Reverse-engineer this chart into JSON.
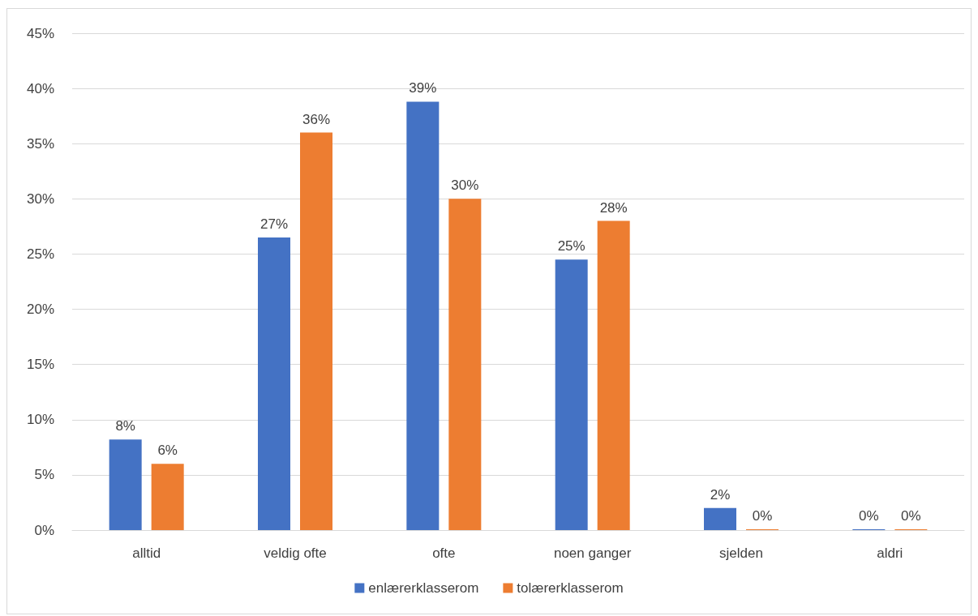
{
  "chart_data": {
    "type": "bar",
    "categories": [
      "alltid",
      "veldig ofte",
      "ofte",
      "noen ganger",
      "sjelden",
      "aldri"
    ],
    "series": [
      {
        "name": "enlærerklasserom",
        "color": "#4472c4",
        "values": [
          8.2,
          26.5,
          38.8,
          24.5,
          2.0,
          0
        ],
        "value_labels": [
          "8%",
          "27%",
          "39%",
          "25%",
          "2%",
          "0%"
        ]
      },
      {
        "name": "tolærerklasserom",
        "color": "#ed7d31",
        "values": [
          6.0,
          36.0,
          30.0,
          28.0,
          0,
          0
        ],
        "value_labels": [
          "6%",
          "36%",
          "30%",
          "28%",
          "0%",
          "0%"
        ]
      }
    ],
    "ylim": [
      0,
      45
    ],
    "yticks": [
      {
        "value": 0,
        "label": "0%"
      },
      {
        "value": 5,
        "label": "5%"
      },
      {
        "value": 10,
        "label": "10%"
      },
      {
        "value": 15,
        "label": "15%"
      },
      {
        "value": 20,
        "label": "20%"
      },
      {
        "value": 25,
        "label": "25%"
      },
      {
        "value": 30,
        "label": "30%"
      },
      {
        "value": 35,
        "label": "35%"
      },
      {
        "value": 40,
        "label": "40%"
      },
      {
        "value": 45,
        "label": "45%"
      }
    ],
    "grid": "y",
    "legend": "bottom"
  }
}
